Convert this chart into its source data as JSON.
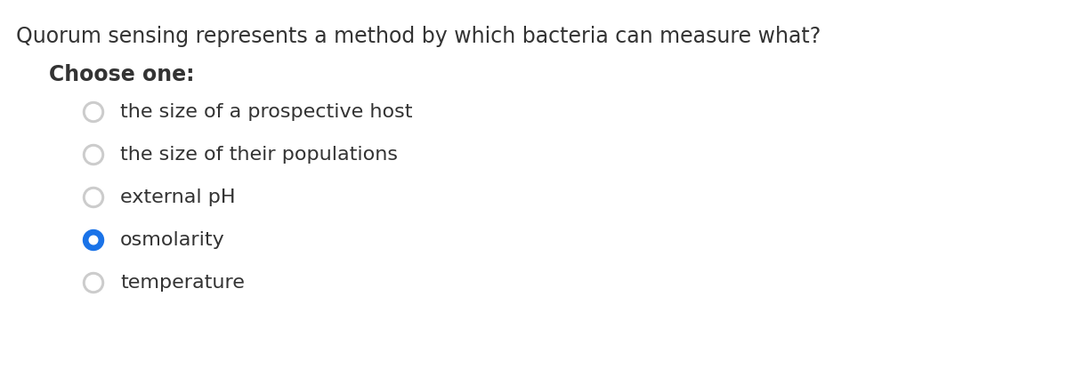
{
  "question": "Quorum sensing represents a method by which bacteria can measure what?",
  "instruction": "Choose one:",
  "options": [
    "the size of a prospective host",
    "the size of their populations",
    "external pH",
    "osmolarity",
    "temperature"
  ],
  "selected_index": 3,
  "bg_color": "#ffffff",
  "question_color": "#333333",
  "instruction_color": "#333333",
  "option_color": "#333333",
  "radio_empty_color": "#cccccc",
  "radio_selected_color": "#1a73e8",
  "question_fontsize": 17,
  "instruction_fontsize": 17,
  "option_fontsize": 16,
  "fig_width": 12.0,
  "fig_height": 4.24
}
